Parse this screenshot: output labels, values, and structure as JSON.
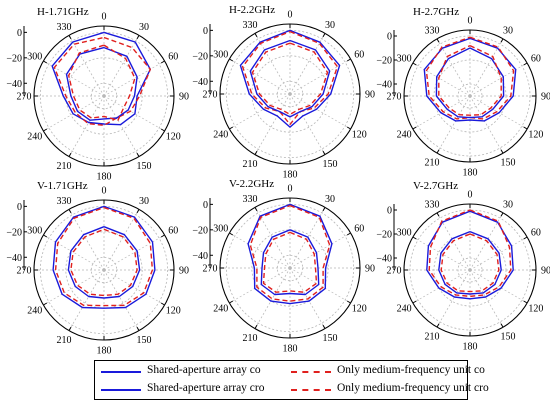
{
  "colors": {
    "shared": "#1a1adb",
    "medium": "#e0201e",
    "grid": "#b5b5b5",
    "axis": "#000000"
  },
  "angle_labels": [
    "0",
    "30",
    "60",
    "90",
    "120",
    "150",
    "180",
    "210",
    "240",
    "270",
    "300",
    "330"
  ],
  "radial_labels": [
    "0",
    "−20",
    "−40"
  ],
  "legend": {
    "items": [
      {
        "label": "Shared-aperture array co",
        "style": "solid"
      },
      {
        "label": "Only medium-frequency unit co",
        "style": "dashed"
      },
      {
        "label": "Shared-aperture array cro",
        "style": "solid"
      },
      {
        "label": "Only medium-frequency unit cro",
        "style": "dashed"
      }
    ]
  },
  "chart_data": [
    {
      "type": "polar-line",
      "title": "H-1.71GHz",
      "theta_unit": "deg",
      "r_unit": "dB",
      "rlim": [
        -50,
        5
      ],
      "r_ticks": [
        0,
        -20,
        -40
      ],
      "theta_ticks_step": 30,
      "series": [
        {
          "name": "Shared-aperture array co",
          "style": "solid",
          "color": "#1a1adb",
          "theta": [
            0,
            30,
            60,
            90,
            120,
            150,
            180,
            210,
            240,
            270,
            300,
            330
          ],
          "r": [
            0,
            -1,
            -8,
            -24,
            -22,
            -24,
            -28,
            -26,
            -22,
            -18,
            -3,
            -1
          ]
        },
        {
          "name": "Only medium-frequency unit co",
          "style": "dashed",
          "color": "#e0201e",
          "theta": [
            0,
            30,
            60,
            90,
            120,
            150,
            180,
            210,
            240,
            270,
            300,
            330
          ],
          "r": [
            -4,
            -6,
            -8,
            -22,
            -26,
            -30,
            -27,
            -25,
            -24,
            -20,
            -5,
            -3
          ]
        },
        {
          "name": "Shared-aperture array cro",
          "style": "solid",
          "color": "#1a1adb",
          "theta": [
            0,
            30,
            60,
            90,
            120,
            150,
            180,
            210,
            240,
            270,
            300,
            330
          ],
          "r": [
            -12,
            -14,
            -20,
            -26,
            -28,
            -30,
            -32,
            -28,
            -26,
            -24,
            -16,
            -12
          ]
        },
        {
          "name": "Only medium-frequency unit cro",
          "style": "dashed",
          "color": "#e0201e",
          "theta": [
            0,
            30,
            60,
            90,
            120,
            150,
            180,
            210,
            240,
            270,
            300,
            330
          ],
          "r": [
            -10,
            -16,
            -22,
            -30,
            -32,
            -28,
            -34,
            -30,
            -28,
            -26,
            -18,
            -11
          ]
        }
      ]
    },
    {
      "type": "polar-line",
      "title": "H-2.2GHz",
      "theta_unit": "deg",
      "r_unit": "dB",
      "rlim": [
        -50,
        5
      ],
      "r_ticks": [
        0,
        -20,
        -40
      ],
      "theta_ticks_step": 30,
      "series": [
        {
          "name": "Shared-aperture array co",
          "style": "solid",
          "color": "#1a1adb",
          "theta": [
            0,
            30,
            60,
            90,
            120,
            150,
            180,
            210,
            240,
            270,
            300,
            330
          ],
          "r": [
            0,
            -3,
            -5,
            -18,
            -26,
            -30,
            -24,
            -30,
            -26,
            -18,
            -5,
            -3
          ]
        },
        {
          "name": "Only medium-frequency unit co",
          "style": "dashed",
          "color": "#e0201e",
          "theta": [
            0,
            30,
            60,
            90,
            120,
            150,
            180,
            210,
            240,
            270,
            300,
            330
          ],
          "r": [
            -1,
            -4,
            -7,
            -20,
            -28,
            -34,
            -26,
            -34,
            -28,
            -20,
            -7,
            -4
          ]
        },
        {
          "name": "Shared-aperture array cro",
          "style": "solid",
          "color": "#1a1adb",
          "theta": [
            0,
            30,
            60,
            90,
            120,
            150,
            180,
            210,
            240,
            270,
            300,
            330
          ],
          "r": [
            -8,
            -10,
            -14,
            -24,
            -30,
            -34,
            -32,
            -34,
            -30,
            -24,
            -14,
            -10
          ]
        },
        {
          "name": "Only medium-frequency unit cro",
          "style": "dashed",
          "color": "#e0201e",
          "theta": [
            0,
            30,
            60,
            90,
            120,
            150,
            180,
            210,
            240,
            270,
            300,
            330
          ],
          "r": [
            -10,
            -12,
            -16,
            -26,
            -32,
            -36,
            -34,
            -36,
            -32,
            -26,
            -16,
            -12
          ]
        }
      ]
    },
    {
      "type": "polar-line",
      "title": "H-2.7GHz",
      "theta_unit": "deg",
      "r_unit": "dB",
      "rlim": [
        -50,
        5
      ],
      "r_ticks": [
        0,
        -20,
        -40
      ],
      "theta_ticks_step": 30,
      "series": [
        {
          "name": "Shared-aperture array co",
          "style": "solid",
          "color": "#1a1adb",
          "theta": [
            0,
            30,
            60,
            90,
            120,
            150,
            180,
            210,
            240,
            270,
            300,
            330
          ],
          "r": [
            -2,
            -4,
            -6,
            -14,
            -22,
            -26,
            -30,
            -26,
            -22,
            -14,
            -6,
            -4
          ]
        },
        {
          "name": "Only medium-frequency unit co",
          "style": "dashed",
          "color": "#e0201e",
          "theta": [
            0,
            30,
            60,
            90,
            120,
            150,
            180,
            210,
            240,
            270,
            300,
            330
          ],
          "r": [
            -1,
            -3,
            -8,
            -16,
            -24,
            -28,
            -32,
            -28,
            -24,
            -16,
            -8,
            -3
          ]
        },
        {
          "name": "Shared-aperture array cro",
          "style": "solid",
          "color": "#1a1adb",
          "theta": [
            0,
            30,
            60,
            90,
            120,
            150,
            180,
            210,
            240,
            270,
            300,
            330
          ],
          "r": [
            -10,
            -14,
            -18,
            -22,
            -28,
            -30,
            -32,
            -30,
            -28,
            -22,
            -18,
            -14
          ]
        },
        {
          "name": "Only medium-frequency unit cro",
          "style": "dashed",
          "color": "#e0201e",
          "theta": [
            0,
            30,
            60,
            90,
            120,
            150,
            180,
            210,
            240,
            270,
            300,
            330
          ],
          "r": [
            -8,
            -12,
            -20,
            -24,
            -30,
            -32,
            -34,
            -32,
            -30,
            -24,
            -20,
            -12
          ]
        }
      ]
    },
    {
      "type": "polar-line",
      "title": "V-1.71GHz",
      "theta_unit": "deg",
      "r_unit": "dB",
      "rlim": [
        -50,
        5
      ],
      "r_ticks": [
        0,
        -20,
        -40
      ],
      "theta_ticks_step": 30,
      "series": [
        {
          "name": "Shared-aperture array co",
          "style": "solid",
          "color": "#1a1adb",
          "theta": [
            0,
            30,
            60,
            90,
            120,
            150,
            180,
            210,
            240,
            270,
            300,
            330
          ],
          "r": [
            0,
            -2,
            -6,
            -10,
            -12,
            -16,
            -20,
            -16,
            -12,
            -10,
            -6,
            -2
          ]
        },
        {
          "name": "Only medium-frequency unit co",
          "style": "dashed",
          "color": "#e0201e",
          "theta": [
            0,
            30,
            60,
            90,
            120,
            150,
            180,
            210,
            240,
            270,
            300,
            330
          ],
          "r": [
            -1,
            -3,
            -8,
            -12,
            -14,
            -18,
            -22,
            -18,
            -14,
            -12,
            -8,
            -3
          ]
        },
        {
          "name": "Shared-aperture array cro",
          "style": "solid",
          "color": "#1a1adb",
          "theta": [
            0,
            30,
            60,
            90,
            120,
            150,
            180,
            210,
            240,
            270,
            300,
            330
          ],
          "r": [
            -16,
            -18,
            -20,
            -22,
            -24,
            -26,
            -28,
            -26,
            -24,
            -22,
            -20,
            -18
          ]
        },
        {
          "name": "Only medium-frequency unit cro",
          "style": "dashed",
          "color": "#e0201e",
          "theta": [
            0,
            30,
            60,
            90,
            120,
            150,
            180,
            210,
            240,
            270,
            300,
            330
          ],
          "r": [
            -18,
            -20,
            -22,
            -24,
            -26,
            -28,
            -30,
            -28,
            -26,
            -24,
            -22,
            -20
          ]
        }
      ]
    },
    {
      "type": "polar-line",
      "title": "V-2.2GHz",
      "theta_unit": "deg",
      "r_unit": "dB",
      "rlim": [
        -50,
        5
      ],
      "r_ticks": [
        0,
        -20,
        -40
      ],
      "theta_ticks_step": 30,
      "series": [
        {
          "name": "Shared-aperture array co",
          "style": "solid",
          "color": "#1a1adb",
          "theta": [
            0,
            30,
            60,
            90,
            120,
            150,
            180,
            210,
            240,
            270,
            300,
            330
          ],
          "r": [
            0,
            -3,
            -12,
            -22,
            -18,
            -20,
            -22,
            -20,
            -18,
            -22,
            -12,
            -3
          ]
        },
        {
          "name": "Only medium-frequency unit co",
          "style": "dashed",
          "color": "#e0201e",
          "theta": [
            0,
            30,
            60,
            90,
            120,
            150,
            180,
            210,
            240,
            270,
            300,
            330
          ],
          "r": [
            -1,
            -4,
            -14,
            -24,
            -20,
            -22,
            -24,
            -22,
            -20,
            -24,
            -14,
            -4
          ]
        },
        {
          "name": "Shared-aperture array cro",
          "style": "solid",
          "color": "#1a1adb",
          "theta": [
            0,
            30,
            60,
            90,
            120,
            150,
            180,
            210,
            240,
            270,
            300,
            330
          ],
          "r": [
            -20,
            -22,
            -26,
            -28,
            -24,
            -26,
            -30,
            -26,
            -24,
            -28,
            -26,
            -22
          ]
        },
        {
          "name": "Only medium-frequency unit cro",
          "style": "dashed",
          "color": "#e0201e",
          "theta": [
            0,
            30,
            60,
            90,
            120,
            150,
            180,
            210,
            240,
            270,
            300,
            330
          ],
          "r": [
            -22,
            -24,
            -28,
            -30,
            -26,
            -28,
            -32,
            -28,
            -26,
            -30,
            -28,
            -24
          ]
        }
      ]
    },
    {
      "type": "polar-line",
      "title": "V-2.7GHz",
      "theta_unit": "deg",
      "r_unit": "dB",
      "rlim": [
        -50,
        5
      ],
      "r_ticks": [
        0,
        -20,
        -40
      ],
      "theta_ticks_step": 30,
      "series": [
        {
          "name": "Shared-aperture array co",
          "style": "solid",
          "color": "#1a1adb",
          "theta": [
            0,
            30,
            60,
            90,
            120,
            150,
            180,
            210,
            240,
            270,
            300,
            330
          ],
          "r": [
            -1,
            -4,
            -10,
            -14,
            -20,
            -24,
            -26,
            -24,
            -20,
            -14,
            -10,
            -4
          ]
        },
        {
          "name": "Only medium-frequency unit co",
          "style": "dashed",
          "color": "#e0201e",
          "theta": [
            0,
            30,
            60,
            90,
            120,
            150,
            180,
            210,
            240,
            270,
            300,
            330
          ],
          "r": [
            0,
            -3,
            -12,
            -16,
            -22,
            -26,
            -28,
            -26,
            -22,
            -16,
            -12,
            -3
          ]
        },
        {
          "name": "Shared-aperture array cro",
          "style": "solid",
          "color": "#1a1adb",
          "theta": [
            0,
            30,
            60,
            90,
            120,
            150,
            180,
            210,
            240,
            270,
            300,
            330
          ],
          "r": [
            -18,
            -20,
            -22,
            -24,
            -26,
            -28,
            -30,
            -28,
            -26,
            -24,
            -22,
            -20
          ]
        },
        {
          "name": "Only medium-frequency unit cro",
          "style": "dashed",
          "color": "#e0201e",
          "theta": [
            0,
            30,
            60,
            90,
            120,
            150,
            180,
            210,
            240,
            270,
            300,
            330
          ],
          "r": [
            -20,
            -22,
            -24,
            -26,
            -28,
            -30,
            -32,
            -30,
            -28,
            -26,
            -24,
            -22
          ]
        }
      ]
    }
  ]
}
